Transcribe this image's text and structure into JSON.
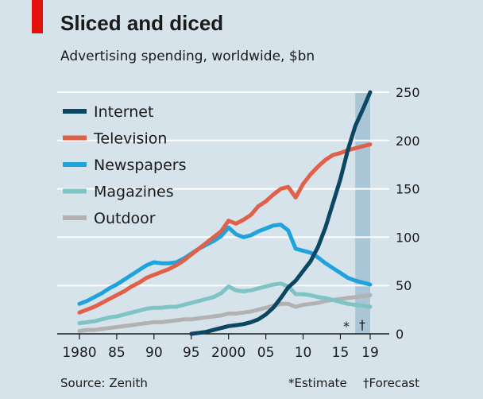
{
  "chart_data": {
    "type": "line",
    "title": "Sliced and diced",
    "subtitle": "Advertising spending, worldwide, $bn",
    "source": "Source: Zenith",
    "footnotes": {
      "estimate": "*Estimate",
      "forecast": "†Forecast"
    },
    "markers": {
      "estimate": "*",
      "forecast": "†"
    },
    "x_tick_labels": [
      "1980",
      "85",
      "90",
      "95",
      "2000",
      "05",
      "10",
      "15",
      "19"
    ],
    "x_tick_values": [
      1980,
      1985,
      1990,
      1995,
      2000,
      2005,
      2010,
      2015,
      2019
    ],
    "y_tick_labels": [
      "0",
      "50",
      "100",
      "150",
      "200",
      "250"
    ],
    "y_tick_values": [
      0,
      50,
      100,
      150,
      200,
      250
    ],
    "xlim": [
      1980,
      2019
    ],
    "ylim": [
      0,
      250
    ],
    "grid": true,
    "legend_position": "top-left",
    "shaded_region": {
      "from": 2017,
      "to": 2019,
      "color": "#a9c5d6"
    },
    "colors": {
      "background": "#d7e3ea",
      "grid": "#ffffff",
      "accent": "#e3120b",
      "text": "#1a1a1a"
    },
    "series": [
      {
        "name": "Internet",
        "color": "#0b4663",
        "points": [
          [
            1995,
            0
          ],
          [
            1996,
            1
          ],
          [
            1997,
            2
          ],
          [
            1998,
            4
          ],
          [
            1999,
            6
          ],
          [
            2000,
            8
          ],
          [
            2001,
            9
          ],
          [
            2002,
            10
          ],
          [
            2003,
            12
          ],
          [
            2004,
            15
          ],
          [
            2005,
            20
          ],
          [
            2006,
            27
          ],
          [
            2007,
            37
          ],
          [
            2008,
            48
          ],
          [
            2009,
            55
          ],
          [
            2010,
            65
          ],
          [
            2011,
            75
          ],
          [
            2012,
            90
          ],
          [
            2013,
            110
          ],
          [
            2014,
            135
          ],
          [
            2015,
            160
          ],
          [
            2016,
            190
          ],
          [
            2017,
            215
          ],
          [
            2018,
            232
          ],
          [
            2019,
            250
          ]
        ]
      },
      {
        "name": "Television",
        "color": "#e0604a",
        "points": [
          [
            1980,
            22
          ],
          [
            1981,
            25
          ],
          [
            1982,
            28
          ],
          [
            1983,
            32
          ],
          [
            1984,
            36
          ],
          [
            1985,
            40
          ],
          [
            1986,
            44
          ],
          [
            1987,
            49
          ],
          [
            1988,
            53
          ],
          [
            1989,
            58
          ],
          [
            1990,
            61
          ],
          [
            1991,
            64
          ],
          [
            1992,
            67
          ],
          [
            1993,
            71
          ],
          [
            1994,
            76
          ],
          [
            1995,
            82
          ],
          [
            1996,
            88
          ],
          [
            1997,
            94
          ],
          [
            1998,
            100
          ],
          [
            1999,
            106
          ],
          [
            2000,
            117
          ],
          [
            2001,
            114
          ],
          [
            2002,
            118
          ],
          [
            2003,
            123
          ],
          [
            2004,
            132
          ],
          [
            2005,
            137
          ],
          [
            2006,
            144
          ],
          [
            2007,
            150
          ],
          [
            2008,
            152
          ],
          [
            2009,
            141
          ],
          [
            2010,
            155
          ],
          [
            2011,
            165
          ],
          [
            2012,
            173
          ],
          [
            2013,
            180
          ],
          [
            2014,
            185
          ],
          [
            2015,
            187
          ],
          [
            2016,
            190
          ],
          [
            2017,
            192
          ],
          [
            2018,
            194
          ],
          [
            2019,
            196
          ]
        ]
      },
      {
        "name": "Newspapers",
        "color": "#1fa3dc",
        "points": [
          [
            1980,
            31
          ],
          [
            1981,
            34
          ],
          [
            1982,
            38
          ],
          [
            1983,
            42
          ],
          [
            1984,
            47
          ],
          [
            1985,
            51
          ],
          [
            1986,
            56
          ],
          [
            1987,
            61
          ],
          [
            1988,
            66
          ],
          [
            1989,
            71
          ],
          [
            1990,
            74
          ],
          [
            1991,
            73
          ],
          [
            1992,
            73
          ],
          [
            1993,
            74
          ],
          [
            1994,
            78
          ],
          [
            1995,
            83
          ],
          [
            1996,
            88
          ],
          [
            1997,
            92
          ],
          [
            1998,
            96
          ],
          [
            1999,
            101
          ],
          [
            2000,
            110
          ],
          [
            2001,
            103
          ],
          [
            2002,
            100
          ],
          [
            2003,
            102
          ],
          [
            2004,
            106
          ],
          [
            2005,
            109
          ],
          [
            2006,
            112
          ],
          [
            2007,
            113
          ],
          [
            2008,
            107
          ],
          [
            2009,
            88
          ],
          [
            2010,
            86
          ],
          [
            2011,
            84
          ],
          [
            2012,
            79
          ],
          [
            2013,
            73
          ],
          [
            2014,
            68
          ],
          [
            2015,
            63
          ],
          [
            2016,
            58
          ],
          [
            2017,
            55
          ],
          [
            2018,
            53
          ],
          [
            2019,
            51
          ]
        ]
      },
      {
        "name": "Magazines",
        "color": "#7ec4c4",
        "points": [
          [
            1980,
            11
          ],
          [
            1981,
            12
          ],
          [
            1982,
            13
          ],
          [
            1983,
            15
          ],
          [
            1984,
            17
          ],
          [
            1985,
            18
          ],
          [
            1986,
            20
          ],
          [
            1987,
            22
          ],
          [
            1988,
            24
          ],
          [
            1989,
            26
          ],
          [
            1990,
            27
          ],
          [
            1991,
            27
          ],
          [
            1992,
            28
          ],
          [
            1993,
            28
          ],
          [
            1994,
            30
          ],
          [
            1995,
            32
          ],
          [
            1996,
            34
          ],
          [
            1997,
            36
          ],
          [
            1998,
            38
          ],
          [
            1999,
            42
          ],
          [
            2000,
            49
          ],
          [
            2001,
            45
          ],
          [
            2002,
            44
          ],
          [
            2003,
            45
          ],
          [
            2004,
            47
          ],
          [
            2005,
            49
          ],
          [
            2006,
            51
          ],
          [
            2007,
            52
          ],
          [
            2008,
            49
          ],
          [
            2009,
            41
          ],
          [
            2010,
            41
          ],
          [
            2011,
            40
          ],
          [
            2012,
            38
          ],
          [
            2013,
            37
          ],
          [
            2014,
            35
          ],
          [
            2015,
            33
          ],
          [
            2016,
            31
          ],
          [
            2017,
            30
          ],
          [
            2018,
            29
          ],
          [
            2019,
            28
          ]
        ]
      },
      {
        "name": "Outdoor",
        "color": "#b3b1b1",
        "points": [
          [
            1980,
            3
          ],
          [
            1981,
            4
          ],
          [
            1982,
            4
          ],
          [
            1983,
            5
          ],
          [
            1984,
            6
          ],
          [
            1985,
            7
          ],
          [
            1986,
            8
          ],
          [
            1987,
            9
          ],
          [
            1988,
            10
          ],
          [
            1989,
            11
          ],
          [
            1990,
            12
          ],
          [
            1991,
            12
          ],
          [
            1992,
            13
          ],
          [
            1993,
            14
          ],
          [
            1994,
            15
          ],
          [
            1995,
            15
          ],
          [
            1996,
            16
          ],
          [
            1997,
            17
          ],
          [
            1998,
            18
          ],
          [
            1999,
            19
          ],
          [
            2000,
            21
          ],
          [
            2001,
            21
          ],
          [
            2002,
            22
          ],
          [
            2003,
            23
          ],
          [
            2004,
            25
          ],
          [
            2005,
            27
          ],
          [
            2006,
            29
          ],
          [
            2007,
            31
          ],
          [
            2008,
            31
          ],
          [
            2009,
            28
          ],
          [
            2010,
            30
          ],
          [
            2011,
            31
          ],
          [
            2012,
            32
          ],
          [
            2013,
            34
          ],
          [
            2014,
            35
          ],
          [
            2015,
            36
          ],
          [
            2016,
            37
          ],
          [
            2017,
            38
          ],
          [
            2018,
            39
          ],
          [
            2019,
            40
          ]
        ]
      }
    ]
  }
}
